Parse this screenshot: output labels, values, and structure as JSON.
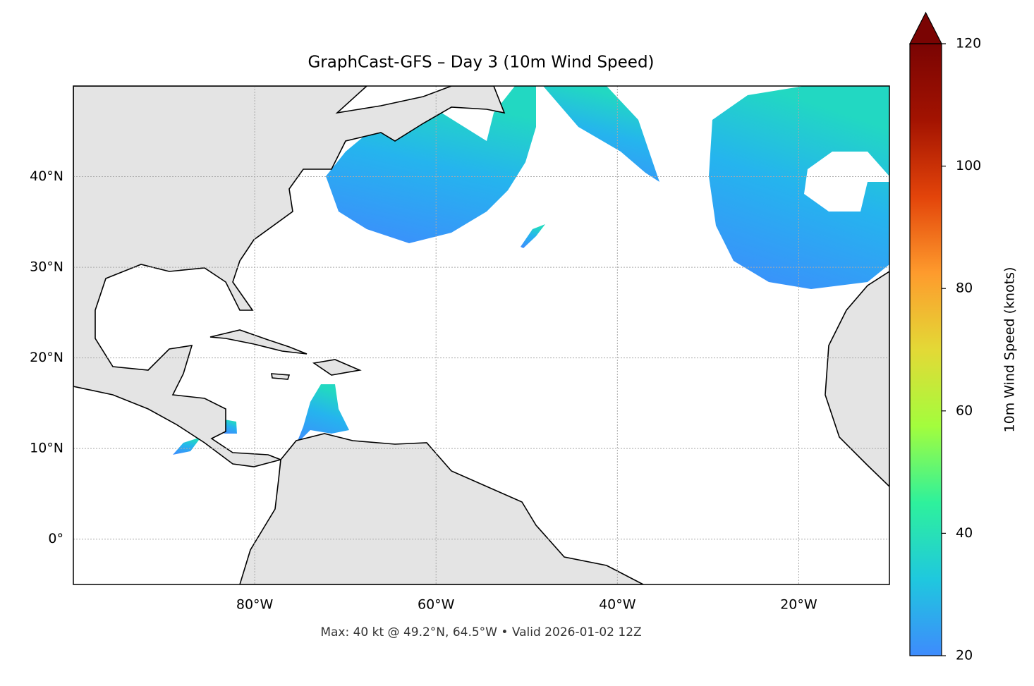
{
  "chart_data": {
    "type": "map",
    "title": "GraphCast-GFS – Day 3 (10m Wind Speed)",
    "footnote": "Max: 40 kt @ 49.2°N, 64.5°W • Valid 2026-01-02 12Z",
    "xlim": [
      -100,
      -10
    ],
    "ylim": [
      -5,
      50
    ],
    "xticks": [
      {
        "value": -80,
        "label": "80°W"
      },
      {
        "value": -60,
        "label": "60°W"
      },
      {
        "value": -40,
        "label": "40°W"
      },
      {
        "value": -20,
        "label": "20°W"
      }
    ],
    "yticks": [
      {
        "value": 0,
        "label": "0°"
      },
      {
        "value": 10,
        "label": "10°N"
      },
      {
        "value": 20,
        "label": "20°N"
      },
      {
        "value": 30,
        "label": "30°N"
      },
      {
        "value": 40,
        "label": "40°N"
      }
    ],
    "grid": true,
    "colorbar": {
      "label": "10m Wind Speed (knots)",
      "clim": [
        20,
        120
      ],
      "ticks": [
        20,
        40,
        60,
        80,
        100,
        120
      ],
      "extend": "max",
      "colors": [
        "#3e8bfd",
        "#1fc8de",
        "#2ef19c",
        "#a3fd3d",
        "#e3d936",
        "#fe9b2d",
        "#e3440a",
        "#a31301",
        "#7a0403"
      ]
    }
  }
}
